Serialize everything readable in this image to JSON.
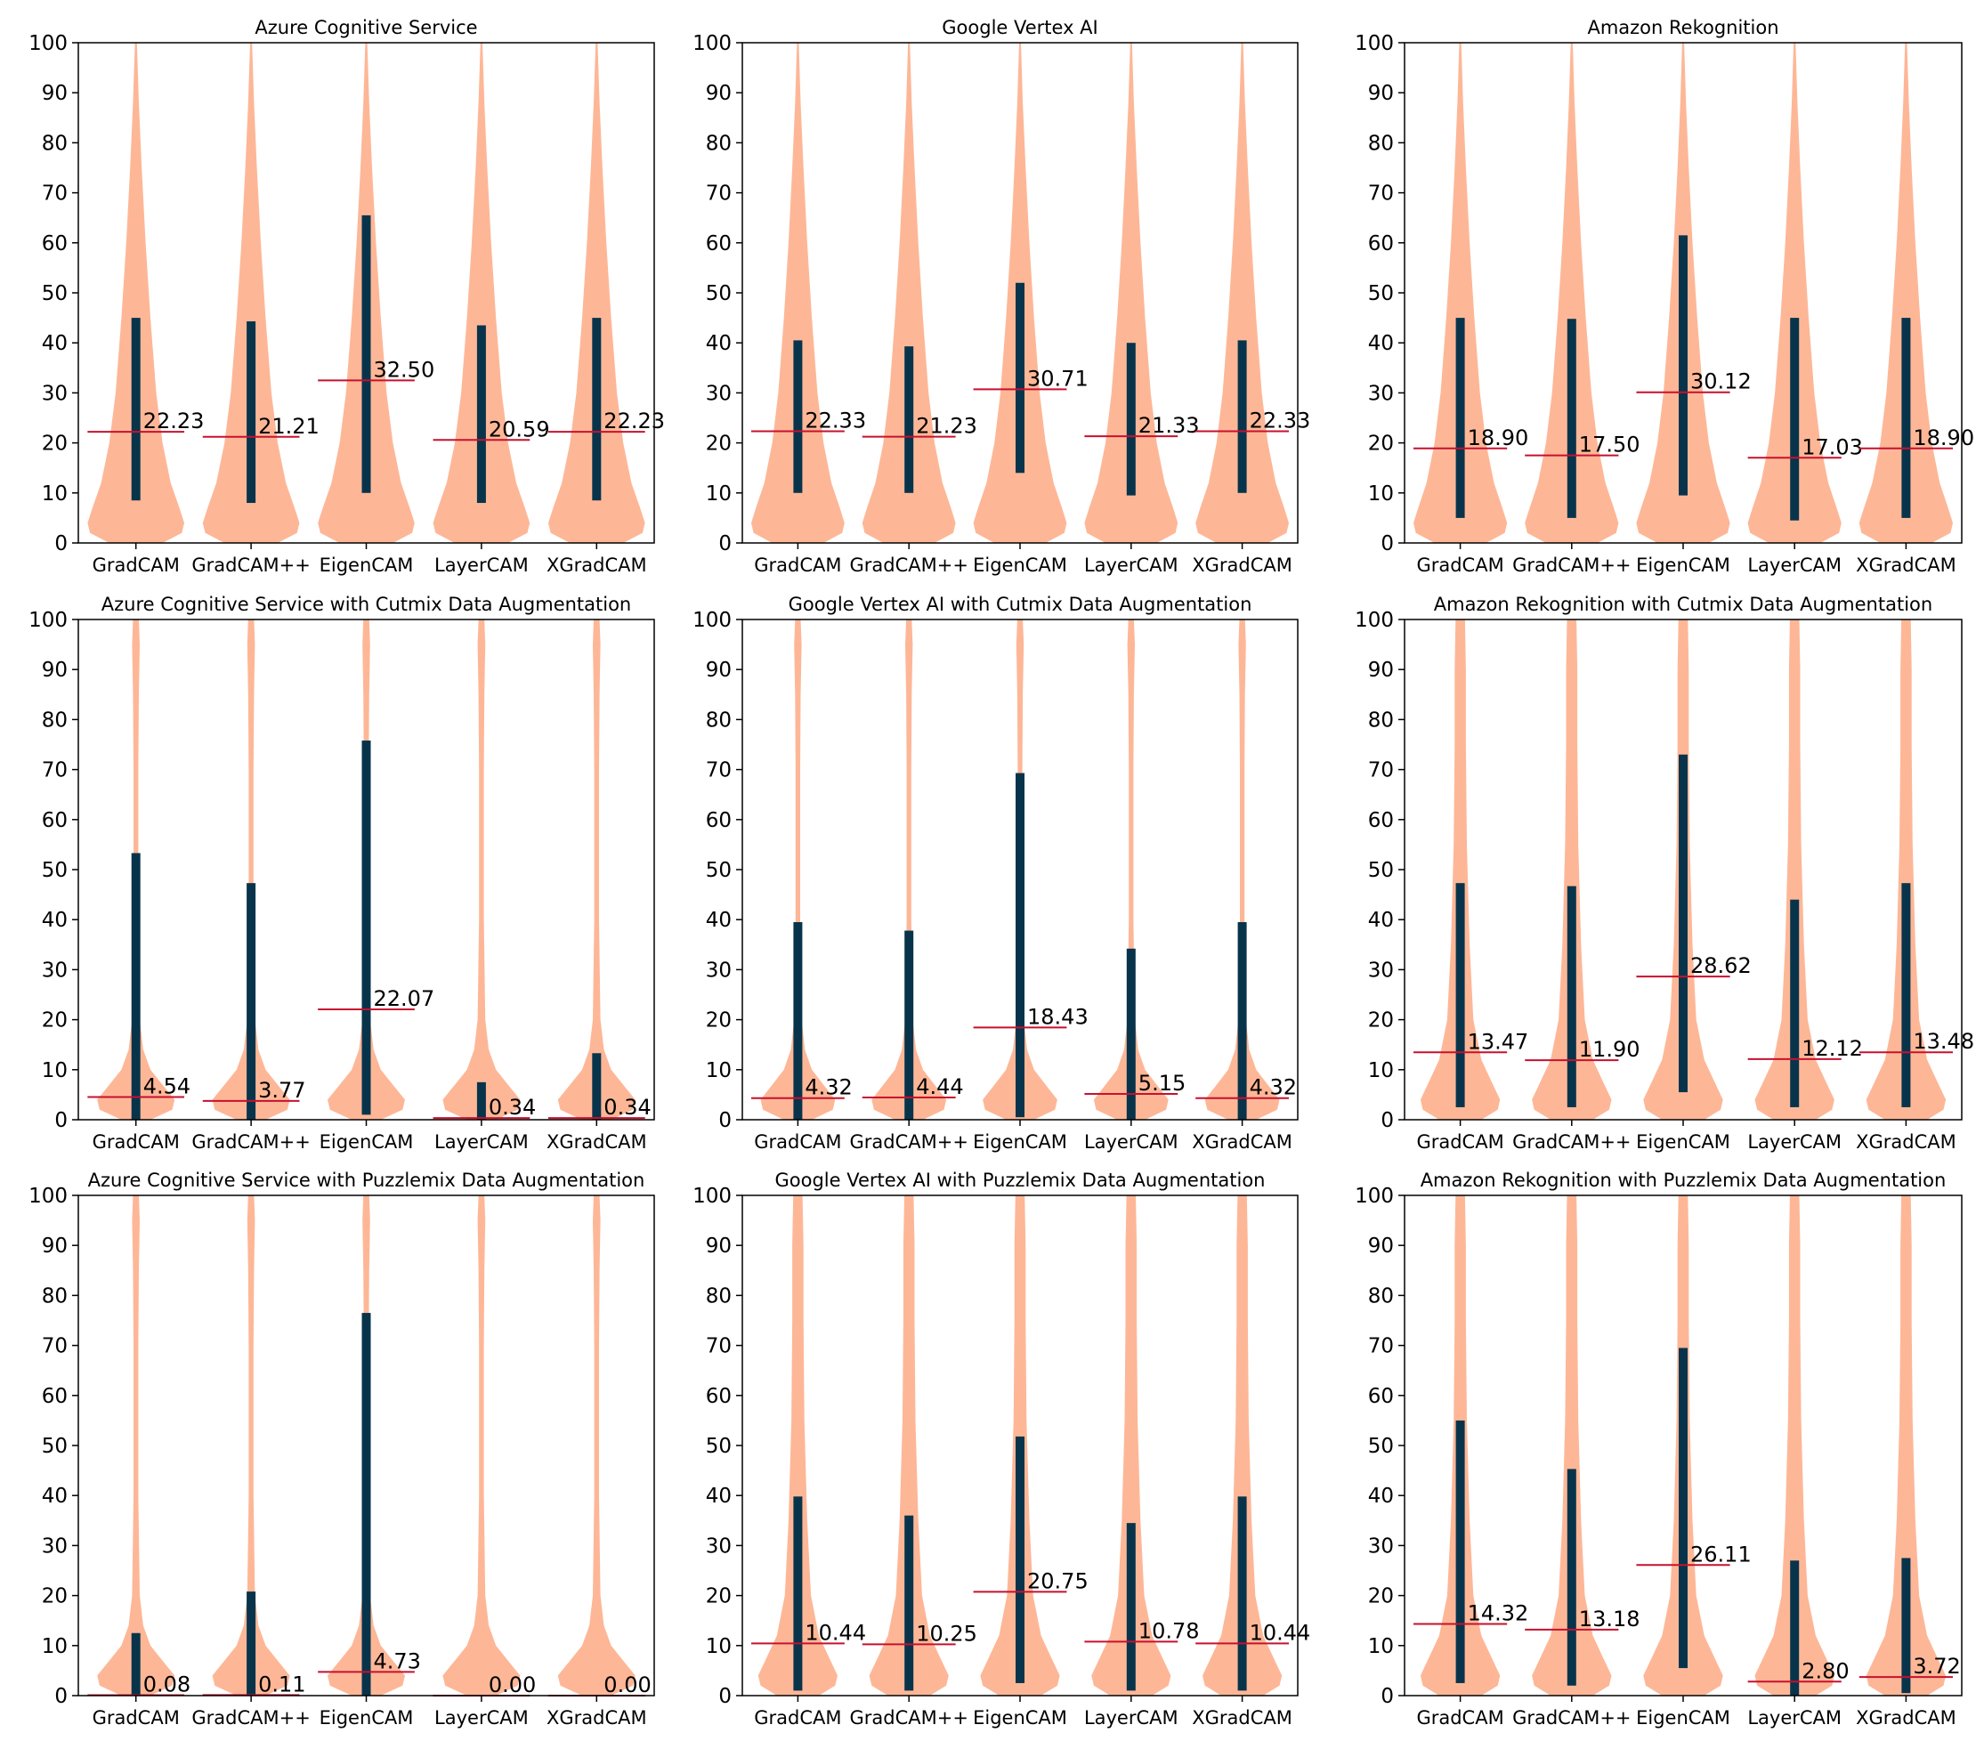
{
  "figure": {
    "rows": 3,
    "cols": 3
  },
  "colors": {
    "violin": "#fdb797",
    "mean_line": "#c8102e",
    "iqr_bar": "#08344b",
    "axes": "#000000"
  },
  "chart_data": [
    {
      "type": "violin",
      "title": "Azure Cognitive Service",
      "categories": [
        "GradCAM",
        "GradCAM++",
        "EigenCAM",
        "LayerCAM",
        "XGradCAM"
      ],
      "ylim": [
        0,
        100
      ],
      "yticks": [
        "0",
        "10",
        "20",
        "30",
        "40",
        "50",
        "60",
        "70",
        "80",
        "90",
        "100"
      ],
      "means": [
        22.23,
        21.21,
        32.5,
        20.59,
        22.23
      ],
      "mean_labels": [
        "22.23",
        "21.21",
        "32.50",
        "20.59",
        "22.23"
      ],
      "bar_low": [
        8.5,
        8,
        10,
        8,
        8.5
      ],
      "bar_high": [
        45,
        44.3,
        65.5,
        43.5,
        45
      ],
      "shape": "wide_bottom"
    },
    {
      "type": "violin",
      "title": "Google Vertex AI",
      "categories": [
        "GradCAM",
        "GradCAM++",
        "EigenCAM",
        "LayerCAM",
        "XGradCAM"
      ],
      "ylim": [
        0,
        100
      ],
      "yticks": [
        "0",
        "10",
        "20",
        "30",
        "40",
        "50",
        "60",
        "70",
        "80",
        "90",
        "100"
      ],
      "means": [
        22.33,
        21.23,
        30.71,
        21.33,
        22.33
      ],
      "mean_labels": [
        "22.33",
        "21.23",
        "30.71",
        "21.33",
        "22.33"
      ],
      "bar_low": [
        10,
        10,
        14,
        9.5,
        10
      ],
      "bar_high": [
        40.5,
        39.3,
        52,
        40,
        40.5
      ],
      "shape": "wide_bottom"
    },
    {
      "type": "violin",
      "title": "Amazon Rekognition",
      "categories": [
        "GradCAM",
        "GradCAM++",
        "EigenCAM",
        "LayerCAM",
        "XGradCAM"
      ],
      "ylim": [
        0,
        100
      ],
      "yticks": [
        "0",
        "10",
        "20",
        "30",
        "40",
        "50",
        "60",
        "70",
        "80",
        "90",
        "100"
      ],
      "means": [
        18.9,
        17.5,
        30.12,
        17.03,
        18.9
      ],
      "mean_labels": [
        "18.90",
        "17.50",
        "30.12",
        "17.03",
        "18.90"
      ],
      "bar_low": [
        5,
        5,
        9.5,
        4.5,
        5
      ],
      "bar_high": [
        45,
        44.8,
        61.5,
        45,
        45
      ],
      "shape": "wide_bottom"
    },
    {
      "type": "violin",
      "title": "Azure Cognitive Service with Cutmix Data Augmentation",
      "categories": [
        "GradCAM",
        "GradCAM++",
        "EigenCAM",
        "LayerCAM",
        "XGradCAM"
      ],
      "ylim": [
        0,
        100
      ],
      "yticks": [
        "0",
        "10",
        "20",
        "30",
        "40",
        "50",
        "60",
        "70",
        "80",
        "90",
        "100"
      ],
      "means": [
        4.54,
        3.77,
        22.07,
        0.34,
        0.34
      ],
      "mean_labels": [
        "4.54",
        "3.77",
        "22.07",
        "0.34",
        "0.34"
      ],
      "bar_low": [
        0,
        0,
        1,
        0,
        0
      ],
      "bar_high": [
        53.3,
        47.3,
        75.8,
        7.5,
        13.3
      ],
      "shape": "skinny_low"
    },
    {
      "type": "violin",
      "title": "Google Vertex AI with Cutmix Data Augmentation",
      "categories": [
        "GradCAM",
        "GradCAM++",
        "EigenCAM",
        "LayerCAM",
        "XGradCAM"
      ],
      "ylim": [
        0,
        100
      ],
      "yticks": [
        "0",
        "10",
        "20",
        "30",
        "40",
        "50",
        "60",
        "70",
        "80",
        "90",
        "100"
      ],
      "means": [
        4.32,
        4.44,
        18.43,
        5.15,
        4.32
      ],
      "mean_labels": [
        "4.32",
        "4.44",
        "18.43",
        "5.15",
        "4.32"
      ],
      "bar_low": [
        0,
        0,
        0.5,
        0,
        0
      ],
      "bar_high": [
        39.5,
        37.8,
        69.3,
        34.2,
        39.5
      ],
      "shape": "skinny_low"
    },
    {
      "type": "violin",
      "title": "Amazon Rekognition with Cutmix Data Augmentation",
      "categories": [
        "GradCAM",
        "GradCAM++",
        "EigenCAM",
        "LayerCAM",
        "XGradCAM"
      ],
      "ylim": [
        0,
        100
      ],
      "yticks": [
        "0",
        "10",
        "20",
        "30",
        "40",
        "50",
        "60",
        "70",
        "80",
        "90",
        "100"
      ],
      "means": [
        13.47,
        11.9,
        28.62,
        12.12,
        13.48
      ],
      "mean_labels": [
        "13.47",
        "11.90",
        "28.62",
        "12.12",
        "13.48"
      ],
      "bar_low": [
        2.5,
        2.5,
        5.5,
        2.5,
        2.5
      ],
      "bar_high": [
        47.3,
        46.7,
        73,
        44,
        47.3
      ],
      "shape": "medium_low"
    },
    {
      "type": "violin",
      "title": "Azure Cognitive Service with Puzzlemix Data Augmentation",
      "categories": [
        "GradCAM",
        "GradCAM++",
        "EigenCAM",
        "LayerCAM",
        "XGradCAM"
      ],
      "ylim": [
        0,
        100
      ],
      "yticks": [
        "0",
        "10",
        "20",
        "30",
        "40",
        "50",
        "60",
        "70",
        "80",
        "90",
        "100"
      ],
      "means": [
        0.08,
        0.11,
        4.73,
        0,
        0
      ],
      "mean_labels": [
        "0.08",
        "0.11",
        "4.73",
        "0.00",
        "0.00"
      ],
      "bar_low": [
        0,
        0,
        0,
        0,
        0
      ],
      "bar_high": [
        12.5,
        20.8,
        76.5,
        0,
        0
      ],
      "shape": "skinny_low"
    },
    {
      "type": "violin",
      "title": "Google Vertex AI with Puzzlemix Data Augmentation",
      "categories": [
        "GradCAM",
        "GradCAM++",
        "EigenCAM",
        "LayerCAM",
        "XGradCAM"
      ],
      "ylim": [
        0,
        100
      ],
      "yticks": [
        "0",
        "10",
        "20",
        "30",
        "40",
        "50",
        "60",
        "70",
        "80",
        "90",
        "100"
      ],
      "means": [
        10.44,
        10.25,
        20.75,
        10.78,
        10.44
      ],
      "mean_labels": [
        "10.44",
        "10.25",
        "20.75",
        "10.78",
        "10.44"
      ],
      "bar_low": [
        1,
        1,
        2.5,
        1,
        1
      ],
      "bar_high": [
        39.8,
        36,
        51.8,
        34.5,
        39.8
      ],
      "shape": "medium_low"
    },
    {
      "type": "violin",
      "title": "Amazon Rekognition with Puzzlemix Data Augmentation",
      "categories": [
        "GradCAM",
        "GradCAM++",
        "EigenCAM",
        "LayerCAM",
        "XGradCAM"
      ],
      "ylim": [
        0,
        100
      ],
      "yticks": [
        "0",
        "10",
        "20",
        "30",
        "40",
        "50",
        "60",
        "70",
        "80",
        "90",
        "100"
      ],
      "means": [
        14.32,
        13.18,
        26.11,
        2.8,
        3.72
      ],
      "mean_labels": [
        "14.32",
        "13.18",
        "26.11",
        "2.80",
        "3.72"
      ],
      "bar_low": [
        2.5,
        2,
        5.5,
        0,
        0.5
      ],
      "bar_high": [
        55,
        45.3,
        69.5,
        27,
        27.5
      ],
      "shape": "medium_low"
    }
  ]
}
